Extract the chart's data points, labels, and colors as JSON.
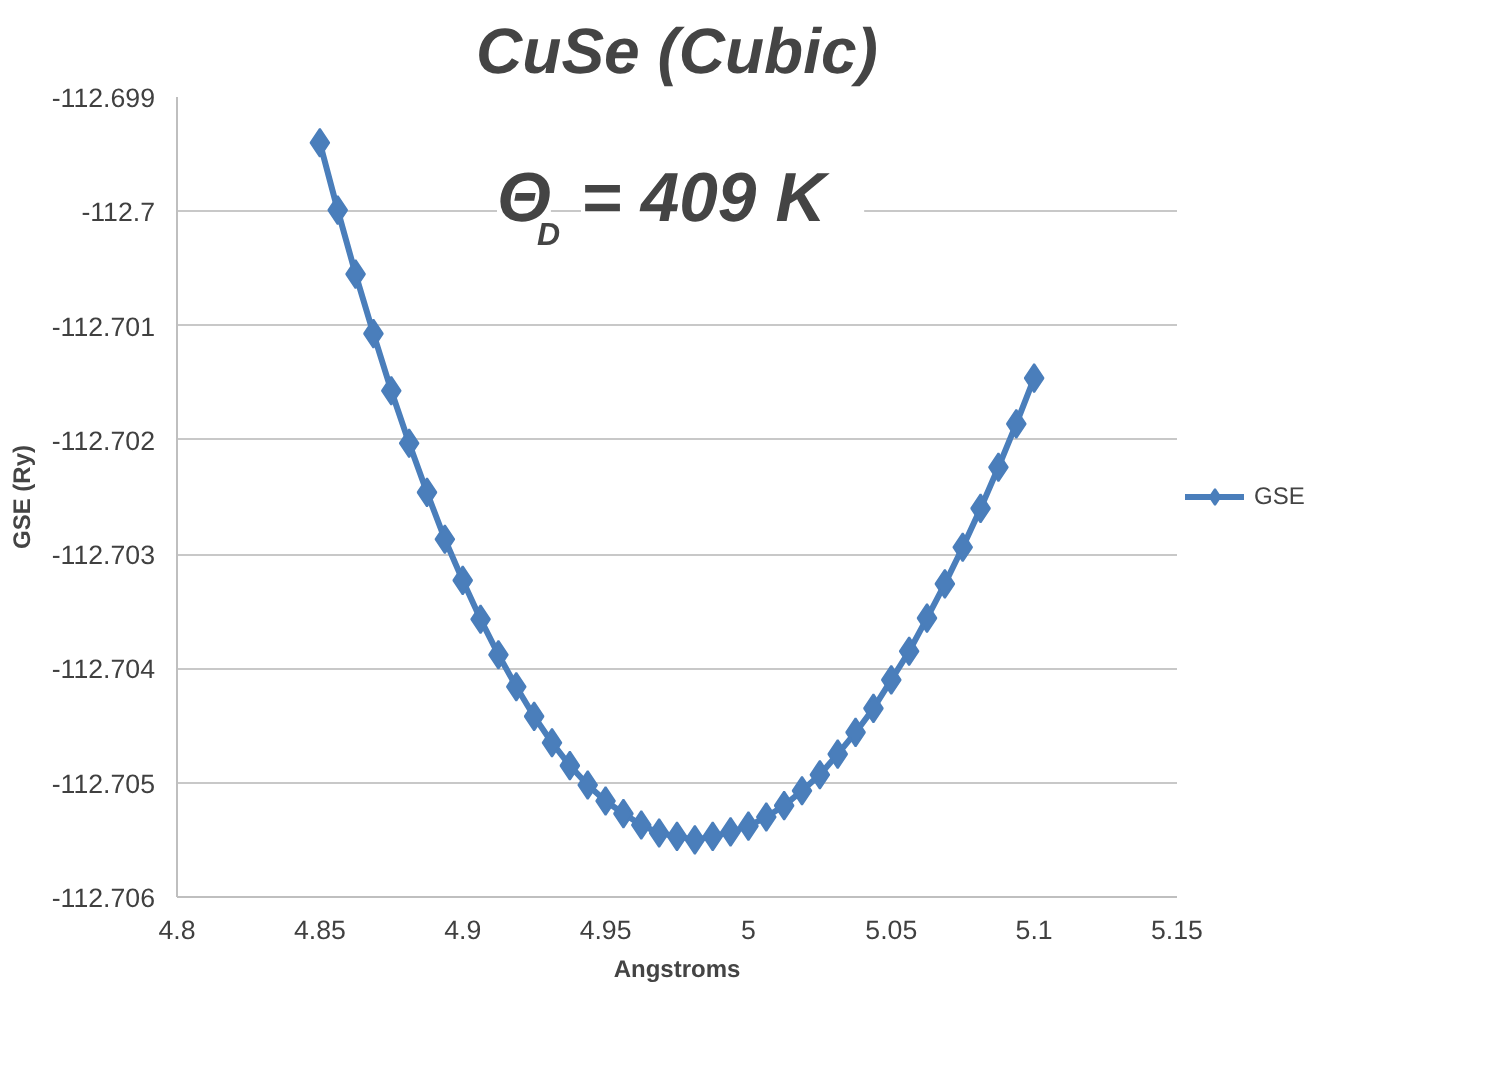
{
  "chart_data": {
    "type": "line",
    "title": "CuSe (Cubic)",
    "xlabel": "Angstroms",
    "ylabel": "GSE (Ry)",
    "annotations": [
      "Θ$_{D}$ =  409 K"
    ],
    "x": [
      4.85,
      4.85625,
      4.8625,
      4.86875,
      4.875,
      4.88125,
      4.8875,
      4.89375,
      4.9,
      4.90625,
      4.9125,
      4.91875,
      4.925,
      4.93125,
      4.9375,
      4.94375,
      4.95,
      4.95625,
      4.9625,
      4.96875,
      4.975,
      4.98125,
      4.9875,
      4.99375,
      5.0,
      5.00625,
      5.0125,
      5.01875,
      5.025,
      5.03125,
      5.0375,
      5.04375,
      5.05,
      5.05625,
      5.0625,
      5.06875,
      5.075,
      5.08125,
      5.0875,
      5.09375,
      5.1
    ],
    "series": [
      {
        "name": "GSE",
        "color": "#4a7ebb",
        "values": [
          -112.6994,
          -112.69999,
          -112.70055,
          -112.70107,
          -112.70157,
          -112.70203,
          -112.70246,
          -112.70287,
          -112.70323,
          -112.70357,
          -112.70388,
          -112.70416,
          -112.70442,
          -112.70465,
          -112.70485,
          -112.70502,
          -112.70516,
          -112.70527,
          -112.70537,
          -112.70544,
          -112.70547,
          -112.7055,
          -112.70547,
          -112.70543,
          -112.70538,
          -112.7053,
          -112.7052,
          -112.70507,
          -112.70493,
          -112.70475,
          -112.70456,
          -112.70435,
          -112.7041,
          -112.70385,
          -112.70356,
          -112.70326,
          -112.70294,
          -112.7026,
          -112.70224,
          -112.70186,
          -112.70146
        ]
      }
    ],
    "xlim": [
      4.8,
      5.15
    ],
    "xticks": [
      4.8,
      4.85,
      4.9,
      4.95,
      5,
      5.05,
      5.1,
      5.15
    ],
    "ylim": [
      -112.706,
      -112.699
    ],
    "yticks": [
      -112.706,
      -112.705,
      -112.704,
      -112.703,
      -112.702,
      -112.701,
      -112.7,
      -112.699
    ],
    "grid": "y",
    "legend": "right",
    "marker": "diamond",
    "line_style": "solid"
  }
}
